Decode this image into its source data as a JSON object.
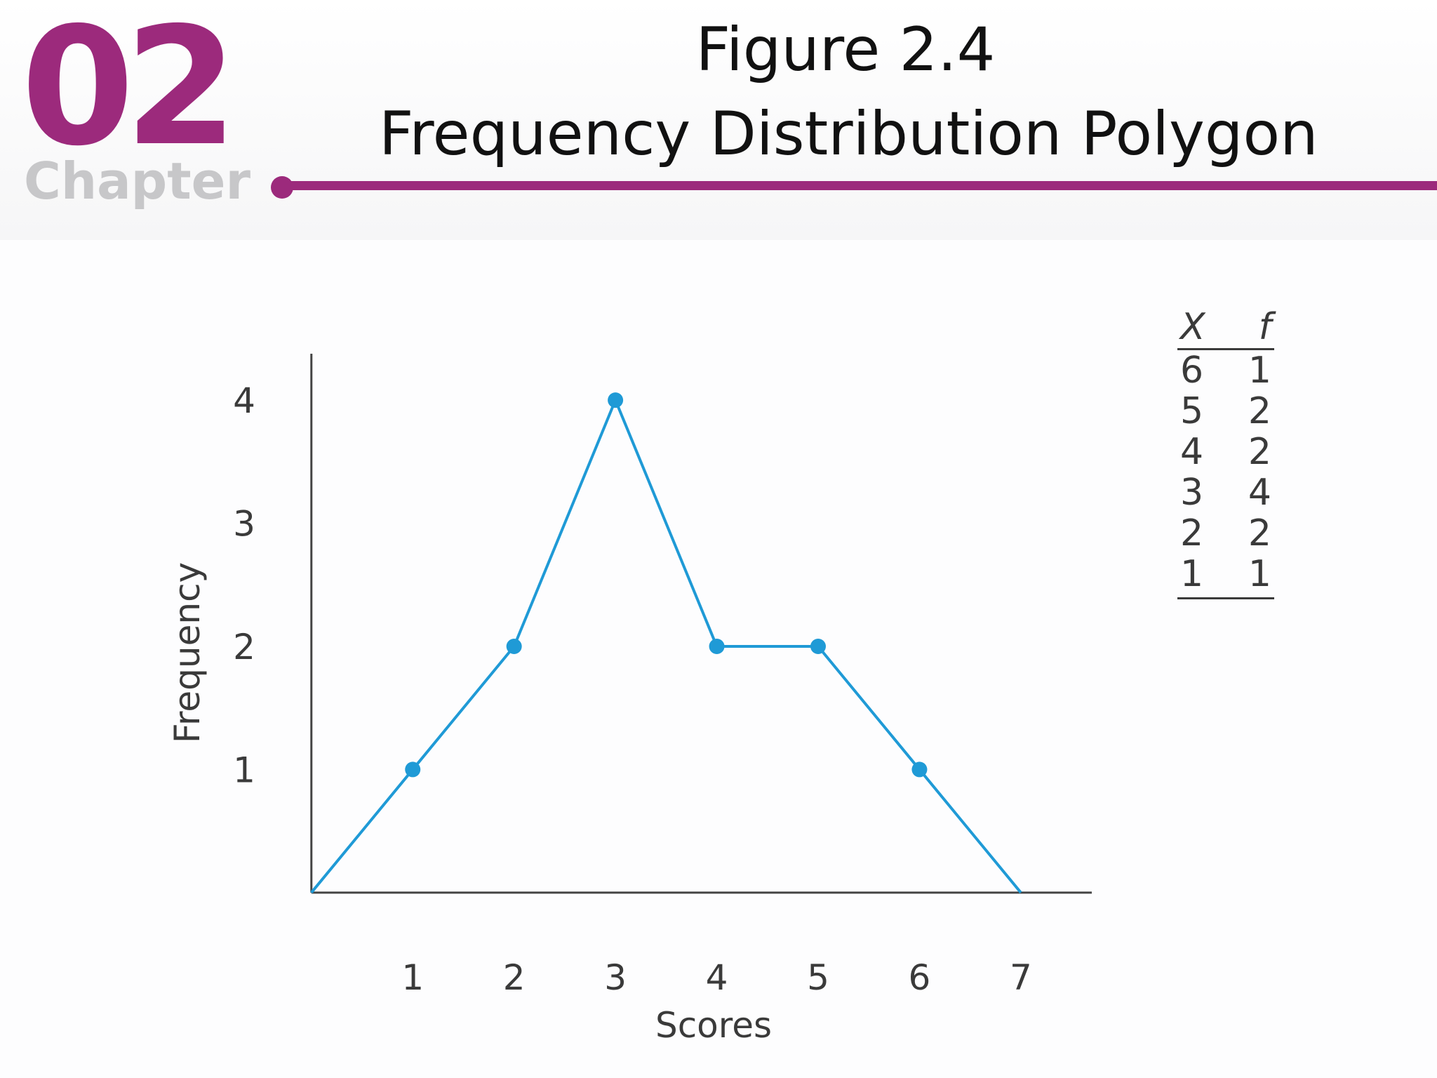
{
  "header": {
    "chapter_number": "02",
    "chapter_word": "Chapter",
    "accent_color": "#9c2a7c"
  },
  "title": {
    "line1": "Figure 2.4",
    "line2": "Frequency Distribution Polygon"
  },
  "chart_data": {
    "type": "line",
    "xlabel": "Scores",
    "ylabel": "Frequency",
    "x_ticks": [
      1,
      2,
      3,
      4,
      5,
      6,
      7
    ],
    "y_ticks": [
      1,
      2,
      3,
      4
    ],
    "xlim": [
      -0.4,
      7.7
    ],
    "ylim": [
      -0.4,
      4.4
    ],
    "polygon_x": [
      0,
      1,
      2,
      3,
      4,
      5,
      6,
      7
    ],
    "polygon_y": [
      0,
      1,
      2,
      4,
      2,
      2,
      1,
      0
    ],
    "series": [
      {
        "x": [
          1,
          2,
          3,
          4,
          5,
          6
        ],
        "values": [
          1,
          2,
          4,
          2,
          2,
          1
        ]
      }
    ],
    "line_color": "#1f9ad6",
    "grid": false
  },
  "table": {
    "headers": [
      "X",
      "f"
    ],
    "rows": [
      [
        "6",
        "1"
      ],
      [
        "5",
        "2"
      ],
      [
        "4",
        "2"
      ],
      [
        "3",
        "4"
      ],
      [
        "2",
        "2"
      ],
      [
        "1",
        "1"
      ]
    ]
  }
}
